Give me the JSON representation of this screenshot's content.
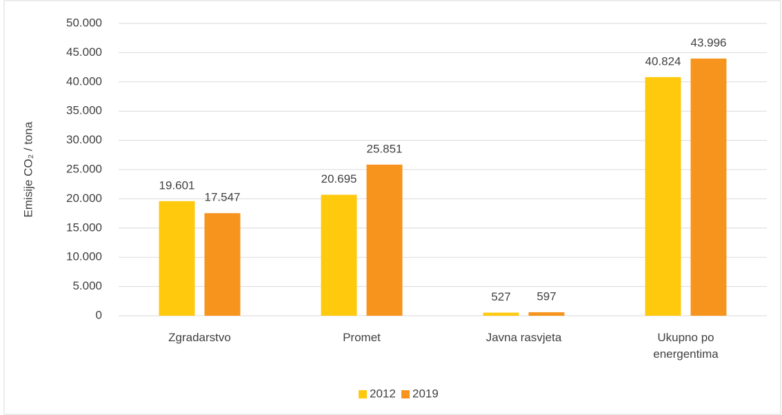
{
  "chart_data": {
    "type": "bar",
    "y_axis_label": "Emisije CO₂ / tona",
    "categories": [
      "Zgradarstvo",
      "Promet",
      "Javna rasvjeta",
      "Ukupno po energentima"
    ],
    "series": [
      {
        "name": "2012",
        "color": "#ffc90e",
        "values": [
          19601,
          20695,
          527,
          40824
        ],
        "value_labels": [
          "19.601",
          "20.695",
          "527",
          "40.824"
        ]
      },
      {
        "name": "2019",
        "color": "#f7941d",
        "values": [
          17547,
          25851,
          597,
          43996
        ],
        "value_labels": [
          "17.547",
          "25.851",
          "597",
          "43.996"
        ]
      }
    ],
    "ylim": [
      0,
      50000
    ],
    "yticks": [
      0,
      {
        "value": 5000,
        "label": "5.000"
      },
      {
        "value": 10000,
        "label": "10.000"
      },
      {
        "value": 15000,
        "label": "15.000"
      },
      {
        "value": 20000,
        "label": "20.000"
      },
      {
        "value": 25000,
        "label": "25.000"
      },
      {
        "value": 30000,
        "label": "30.000"
      },
      {
        "value": 35000,
        "label": "35.000"
      },
      {
        "value": 40000,
        "label": "40.000"
      },
      {
        "value": 45000,
        "label": "45.000"
      },
      {
        "value": 50000,
        "label": "50.000"
      }
    ],
    "grid": true,
    "legend": "bottom"
  }
}
